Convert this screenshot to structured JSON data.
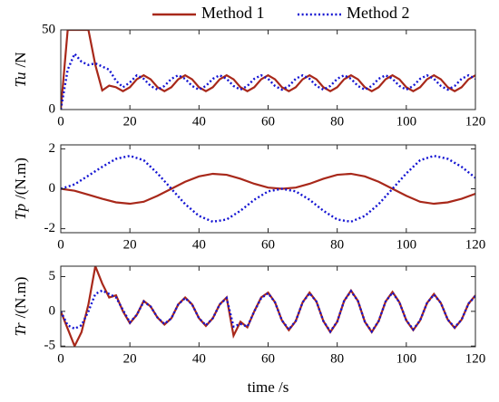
{
  "chart_data": [
    {
      "type": "line",
      "ylabel": {
        "symbol": "Tu",
        "unit": "/N"
      },
      "x": [
        0,
        2,
        4,
        6,
        8,
        10,
        12,
        14,
        16,
        18,
        20,
        22,
        24,
        26,
        28,
        30,
        32,
        34,
        36,
        38,
        40,
        42,
        44,
        46,
        48,
        50,
        52,
        54,
        56,
        58,
        60,
        62,
        64,
        66,
        68,
        70,
        72,
        74,
        76,
        78,
        80,
        82,
        84,
        86,
        88,
        90,
        92,
        94,
        96,
        98,
        100,
        102,
        104,
        106,
        108,
        110,
        112,
        114,
        116,
        118,
        120
      ],
      "xlim": [
        0,
        120
      ],
      "xticks": [
        0,
        20,
        40,
        60,
        80,
        100,
        120
      ],
      "ylim": [
        0,
        50
      ],
      "yticks": [
        0,
        50
      ],
      "series": [
        {
          "name": "Method 1",
          "color": "#a8281a",
          "dash": "solid",
          "values": [
            0,
            50,
            50,
            50,
            50,
            28,
            12,
            15,
            14,
            11.5,
            14,
            19,
            21.5,
            19,
            14,
            11.5,
            14,
            19,
            21.5,
            19,
            14,
            11.5,
            14,
            19,
            21.5,
            19,
            14,
            11.5,
            14,
            19,
            21.5,
            19,
            14,
            11.5,
            14,
            19,
            21.5,
            19,
            14,
            11.5,
            14,
            19,
            21.5,
            19,
            14,
            11.5,
            14,
            19,
            21.5,
            19,
            14,
            11.5,
            14,
            19,
            21.5,
            19,
            14,
            11.5,
            14,
            19,
            21.5
          ]
        },
        {
          "name": "Method 2",
          "color": "#1414d2",
          "dash": "dotted",
          "values": [
            0,
            25,
            35,
            30,
            28,
            29,
            27,
            25,
            18,
            14,
            17,
            21.5,
            19.3,
            14.8,
            12.5,
            14.8,
            19.3,
            21.5,
            19.3,
            14.8,
            12.5,
            14.8,
            19.3,
            21.5,
            19.3,
            14.8,
            12.5,
            14.8,
            19.3,
            21.5,
            19.3,
            14.8,
            12.5,
            14.8,
            19.3,
            21.5,
            19.3,
            14.8,
            12.5,
            14.8,
            19.3,
            21.5,
            19.3,
            14.8,
            12.5,
            14.8,
            19.3,
            21.5,
            19.3,
            14.8,
            12.5,
            14.8,
            19.3,
            21.5,
            19.3,
            14.8,
            12.5,
            14.8,
            19.3,
            21.5,
            19.3
          ]
        }
      ]
    },
    {
      "type": "line",
      "ylabel": {
        "symbol": "Tp",
        "unit": "/(N.m)"
      },
      "x": [
        0,
        4,
        8,
        12,
        16,
        20,
        24,
        28,
        32,
        36,
        40,
        44,
        48,
        52,
        56,
        60,
        64,
        68,
        72,
        76,
        80,
        84,
        88,
        92,
        96,
        100,
        104,
        108,
        112,
        116,
        120
      ],
      "xlim": [
        0,
        120
      ],
      "xticks": [
        0,
        20,
        40,
        60,
        80,
        100,
        120
      ],
      "ylim": [
        -2.2,
        2.2
      ],
      "yticks": [
        -2,
        0,
        2
      ],
      "series": [
        {
          "color": "#a8281a",
          "dash": "solid",
          "values": [
            0,
            -0.1,
            -0.3,
            -0.5,
            -0.68,
            -0.75,
            -0.65,
            -0.35,
            0,
            0.35,
            0.62,
            0.75,
            0.7,
            0.5,
            0.25,
            0.06,
            0,
            0.06,
            0.25,
            0.5,
            0.7,
            0.75,
            0.62,
            0.35,
            0,
            -0.35,
            -0.65,
            -0.75,
            -0.68,
            -0.5,
            -0.25
          ]
        },
        {
          "color": "#1414d2",
          "dash": "dotted",
          "values": [
            0,
            0.22,
            0.66,
            1.1,
            1.5,
            1.65,
            1.43,
            0.77,
            0,
            -0.77,
            -1.36,
            -1.65,
            -1.54,
            -1.1,
            -0.55,
            -0.13,
            0,
            -0.13,
            -0.55,
            -1.1,
            -1.54,
            -1.65,
            -1.36,
            -0.77,
            0,
            0.77,
            1.43,
            1.65,
            1.5,
            1.1,
            0.55
          ]
        }
      ]
    },
    {
      "type": "line",
      "ylabel": {
        "symbol": "Tr",
        "unit": "/(N.m)"
      },
      "xlabel": "time /s",
      "x": [
        0,
        2,
        4,
        6,
        8,
        10,
        12,
        14,
        16,
        18,
        20,
        22,
        24,
        26,
        28,
        30,
        32,
        34,
        36,
        38,
        40,
        42,
        44,
        46,
        48,
        50,
        52,
        54,
        56,
        58,
        60,
        62,
        64,
        66,
        68,
        70,
        72,
        74,
        76,
        78,
        80,
        82,
        84,
        86,
        88,
        90,
        92,
        94,
        96,
        98,
        100,
        102,
        104,
        106,
        108,
        110,
        112,
        114,
        116,
        118,
        120
      ],
      "xlim": [
        0,
        120
      ],
      "xticks": [
        0,
        20,
        40,
        60,
        80,
        100,
        120
      ],
      "ylim": [
        -5.1,
        6.5
      ],
      "yticks": [
        -5,
        0,
        5
      ],
      "series": [
        {
          "color": "#a8281a",
          "dash": "solid",
          "values": [
            0,
            -2.5,
            -5,
            -3,
            1,
            6.5,
            4,
            2,
            2.3,
            0,
            -1.7,
            -0.5,
            1.5,
            0.7,
            -0.9,
            -1.9,
            -1,
            1,
            2,
            1,
            -1,
            -2.1,
            -1,
            1,
            2,
            -3.5,
            -1.5,
            -2.3,
            0,
            2,
            2.7,
            1.3,
            -1.3,
            -2.7,
            -1.4,
            1.3,
            2.7,
            1.4,
            -1.4,
            -3,
            -1.5,
            1.5,
            3,
            1.5,
            -1.5,
            -3,
            -1.4,
            1.4,
            2.8,
            1.3,
            -1.3,
            -2.7,
            -1.3,
            1.2,
            2.5,
            1.2,
            -1.2,
            -2.4,
            -1.2,
            1.1,
            2.3
          ]
        },
        {
          "color": "#1414d2",
          "dash": "dotted",
          "values": [
            0,
            -2,
            -2.5,
            -2,
            0,
            2.5,
            3,
            2.5,
            2,
            0.2,
            -1.6,
            -0.5,
            1.4,
            0.7,
            -0.9,
            -1.8,
            -1,
            1,
            1.9,
            1,
            -1,
            -2,
            -1,
            1,
            1.9,
            -2.2,
            -1.8,
            -2.2,
            0,
            1.9,
            2.6,
            1.3,
            -1.3,
            -2.6,
            -1.4,
            1.3,
            2.6,
            1.4,
            -1.4,
            -2.9,
            -1.5,
            1.5,
            2.9,
            1.5,
            -1.5,
            -2.9,
            -1.4,
            1.4,
            2.7,
            1.3,
            -1.3,
            -2.6,
            -1.3,
            1.2,
            2.4,
            1.2,
            -1.2,
            -2.3,
            -1.2,
            1.1,
            2.2
          ]
        }
      ]
    }
  ]
}
